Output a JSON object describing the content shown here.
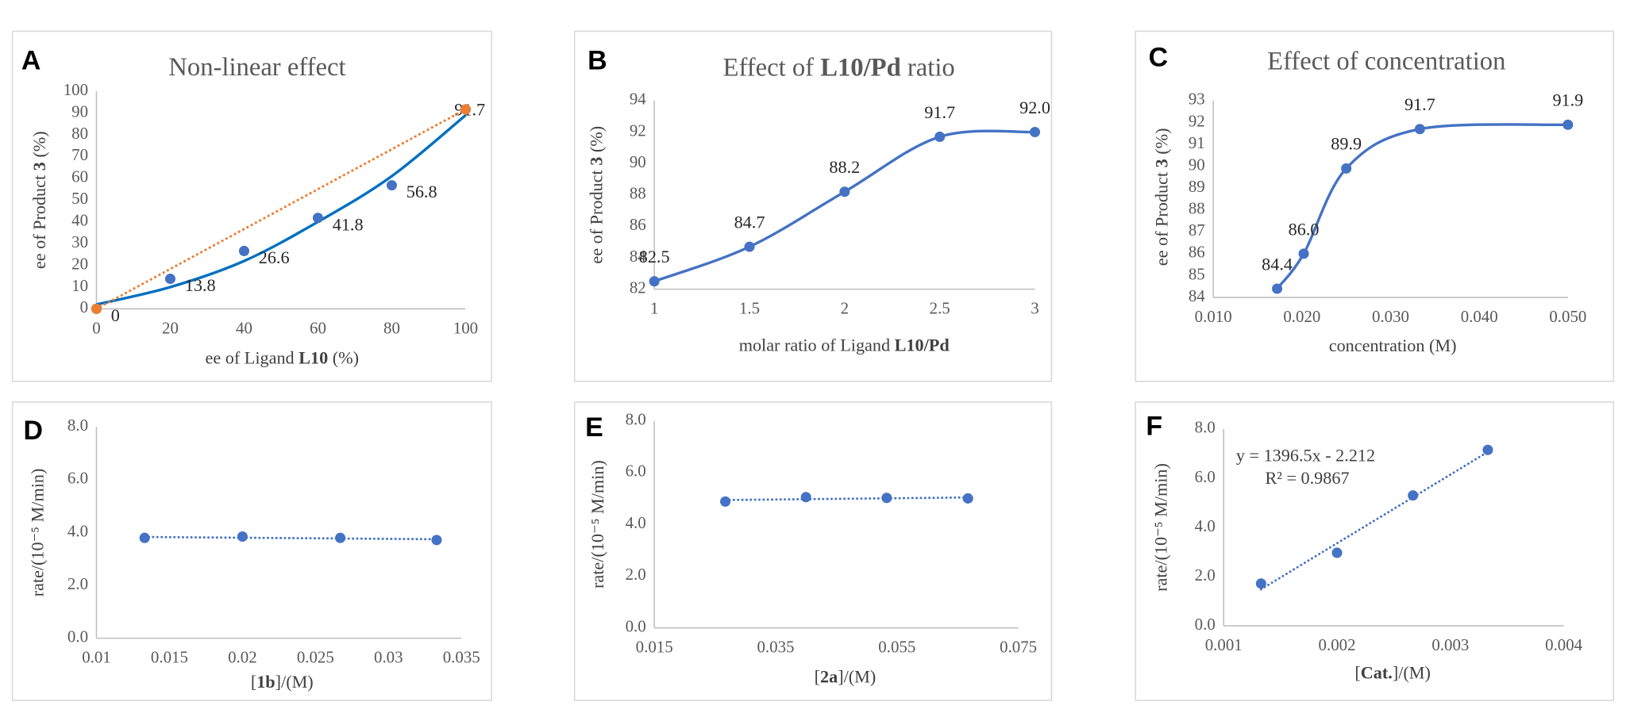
{
  "chart_data": [
    {
      "type": "scatter",
      "panel": "A",
      "title": "Non-linear effect",
      "x_label": [
        "ee of Ligand ",
        "L10",
        " (%)"
      ],
      "y_label": [
        "ee of Product ",
        "3",
        " (%)"
      ],
      "xlim": [
        0,
        100
      ],
      "xticks": [
        0,
        20,
        40,
        60,
        80,
        100
      ],
      "ylim": [
        0,
        100
      ],
      "yticks": [
        0,
        10,
        20,
        30,
        40,
        50,
        60,
        70,
        80,
        90,
        100
      ],
      "series": [
        {
          "color": "#0070c0",
          "line": "smooth",
          "markers": false,
          "x": [
            0,
            20,
            40,
            60,
            80,
            100
          ],
          "values": [
            2,
            10,
            22,
            40,
            61,
            89
          ]
        },
        {
          "color": "#4472c4",
          "line": "none",
          "markers": true,
          "labels": true,
          "x": [
            0,
            20,
            40,
            60,
            80,
            100
          ],
          "values": [
            0,
            13.8,
            26.6,
            41.8,
            56.8,
            91.7
          ]
        },
        {
          "color": "#ed7d31",
          "line": "dotted",
          "markers": true,
          "x": [
            0,
            100
          ],
          "values": [
            0,
            91.7
          ]
        }
      ]
    },
    {
      "type": "scatter",
      "panel": "B",
      "title": [
        "Effect of ",
        "L10/Pd",
        " ratio"
      ],
      "x_label": [
        "molar ratio of Ligand ",
        "L10/Pd"
      ],
      "y_label": [
        "ee of Product ",
        "3",
        " (%)"
      ],
      "xlim": [
        1,
        3
      ],
      "xticks": [
        1,
        1.5,
        2,
        2.5,
        3
      ],
      "ylim": [
        82,
        94
      ],
      "yticks": [
        82,
        84,
        86,
        88,
        90,
        92,
        94
      ],
      "series": [
        {
          "color": "#4472c4",
          "line": "smooth",
          "markers": true,
          "labels": true,
          "x": [
            1,
            1.5,
            2,
            2.5,
            3
          ],
          "values": [
            82.5,
            84.7,
            88.2,
            91.7,
            92.0
          ],
          "value_labels": [
            "82.5",
            "84.7",
            "88.2",
            "91.7",
            "92.0"
          ]
        }
      ]
    },
    {
      "type": "scatter",
      "panel": "C",
      "title": "Effect of concentration",
      "x_label": "concentration (M)",
      "y_label": [
        "ee of Product ",
        "3",
        " (%)"
      ],
      "xlim": [
        0.01,
        0.05
      ],
      "xticks": [
        {
          "value": 0.01,
          "label": "0.010"
        },
        {
          "value": 0.02,
          "label": "0.020"
        },
        {
          "value": 0.03,
          "label": "0.030"
        },
        {
          "value": 0.04,
          "label": "0.040"
        },
        {
          "value": 0.05,
          "label": "0.050"
        }
      ],
      "ylim": [
        84,
        93
      ],
      "yticks": [
        84,
        85,
        86,
        87,
        88,
        89,
        90,
        91,
        92,
        93
      ],
      "series": [
        {
          "color": "#4472c4",
          "line": "smooth",
          "markers": true,
          "labels": true,
          "x": [
            0.0172,
            0.0202,
            0.025,
            0.0333,
            0.05
          ],
          "values": [
            84.4,
            86.0,
            89.9,
            91.7,
            91.9
          ],
          "value_labels": [
            "84.4",
            "86.0",
            "89.9",
            "91.7",
            "91.9"
          ]
        }
      ]
    },
    {
      "type": "scatter",
      "panel": "D",
      "x_label": [
        "[",
        "1b",
        "]/(M)"
      ],
      "y_label": "rate/(10⁻⁵ M/min)",
      "xlim": [
        0.01,
        0.035
      ],
      "xticks": [
        0.01,
        0.015,
        0.02,
        0.025,
        0.03,
        0.035
      ],
      "ylim": [
        0,
        8
      ],
      "yticks": [
        {
          "value": 0,
          "label": "0.0"
        },
        {
          "value": 2,
          "label": "2.0"
        },
        {
          "value": 4,
          "label": "4.0"
        },
        {
          "value": 6,
          "label": "6.0"
        },
        {
          "value": 8,
          "label": "8.0"
        }
      ],
      "series": [
        {
          "color": "#4472c4",
          "line": "trend",
          "markers": true,
          "x": [
            0.0133,
            0.02,
            0.0267,
            0.0333
          ],
          "values": [
            3.8,
            3.85,
            3.8,
            3.72
          ]
        }
      ]
    },
    {
      "type": "scatter",
      "panel": "E",
      "x_label": [
        "[",
        "2a",
        "]/(M)"
      ],
      "y_label": "rate/(10⁻⁵ M/min)",
      "xlim": [
        0.015,
        0.075
      ],
      "xticks": [
        0.015,
        0.035,
        0.055,
        0.075
      ],
      "ylim": [
        0,
        8
      ],
      "yticks": [
        {
          "value": 0,
          "label": "0.0"
        },
        {
          "value": 2,
          "label": "2.0"
        },
        {
          "value": 4,
          "label": "4.0"
        },
        {
          "value": 6,
          "label": "6.0"
        },
        {
          "value": 8,
          "label": "8.0"
        }
      ],
      "series": [
        {
          "color": "#4472c4",
          "line": "trend",
          "markers": true,
          "x": [
            0.0267,
            0.04,
            0.0533,
            0.0667
          ],
          "values": [
            4.88,
            5.05,
            5.02,
            5.0
          ]
        }
      ]
    },
    {
      "type": "scatter",
      "panel": "F",
      "x_label": [
        "[",
        "Cat.",
        "]/(M)"
      ],
      "y_label": "rate/(10⁻⁵ M/min)",
      "xlim": [
        0.001,
        0.004
      ],
      "xticks": [
        0.001,
        0.002,
        0.003,
        0.004
      ],
      "ylim": [
        0,
        8
      ],
      "yticks": [
        {
          "value": 0,
          "label": "0.0"
        },
        {
          "value": 2,
          "label": "2.0"
        },
        {
          "value": 4,
          "label": "4.0"
        },
        {
          "value": 6,
          "label": "6.0"
        },
        {
          "value": 8,
          "label": "8.0"
        }
      ],
      "annotations": [
        "y = 1396.5x - 2.212",
        "R² = 0.9867"
      ],
      "series": [
        {
          "color": "#4472c4",
          "line": "trend",
          "markers": true,
          "x": [
            0.00133,
            0.002,
            0.00267,
            0.00333
          ],
          "values": [
            1.72,
            2.97,
            5.3,
            7.15
          ]
        }
      ]
    }
  ]
}
